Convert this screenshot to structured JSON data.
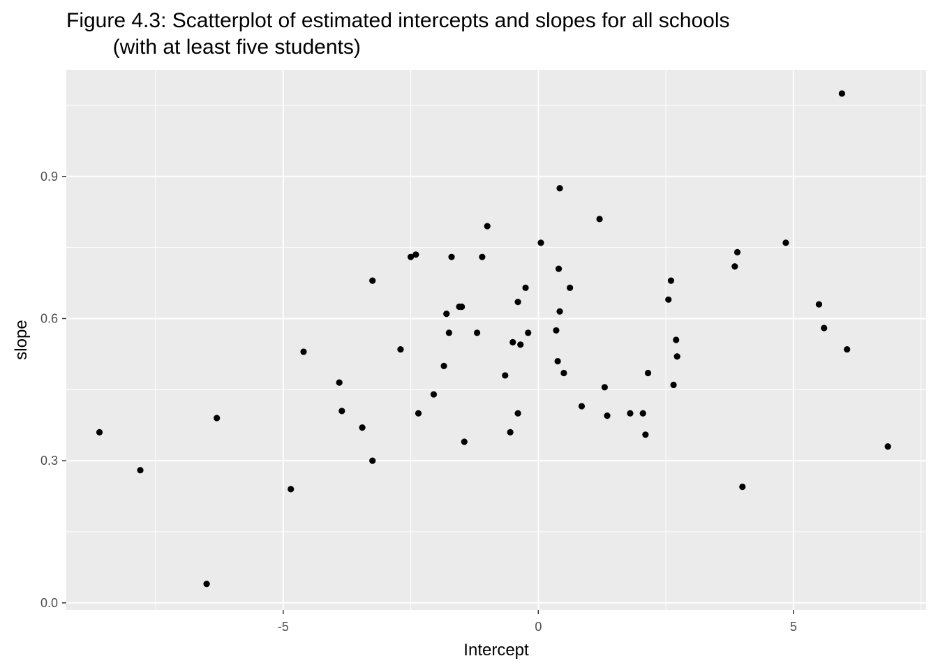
{
  "chart_data": {
    "type": "scatter",
    "title_lines": [
      "Figure 4.3: Scatterplot of estimated intercepts and slopes for all schools",
      "        (with at least five students)"
    ],
    "xlabel": "Intercept",
    "ylabel": "slope",
    "xlim": [
      -9.25,
      7.6
    ],
    "ylim": [
      -0.015,
      1.125
    ],
    "x_ticks": [
      -5,
      0,
      5
    ],
    "x_tick_labels": [
      "-5",
      "0",
      "5"
    ],
    "y_ticks": [
      0.0,
      0.3,
      0.6,
      0.9
    ],
    "y_tick_labels": [
      "0.0",
      "0.3",
      "0.6",
      "0.9"
    ],
    "grid": true,
    "panel_background": "#ebebeb",
    "grid_color": "#ffffff",
    "point_color": "#000000",
    "points": [
      {
        "x": -8.6,
        "y": 0.36
      },
      {
        "x": -7.8,
        "y": 0.28
      },
      {
        "x": -6.5,
        "y": 0.04
      },
      {
        "x": -6.3,
        "y": 0.39
      },
      {
        "x": -4.85,
        "y": 0.24
      },
      {
        "x": -4.6,
        "y": 0.53
      },
      {
        "x": -3.9,
        "y": 0.465
      },
      {
        "x": -3.85,
        "y": 0.405
      },
      {
        "x": -3.45,
        "y": 0.37
      },
      {
        "x": -3.25,
        "y": 0.68
      },
      {
        "x": -3.25,
        "y": 0.3
      },
      {
        "x": -2.7,
        "y": 0.535
      },
      {
        "x": -2.5,
        "y": 0.73
      },
      {
        "x": -2.4,
        "y": 0.735
      },
      {
        "x": -2.35,
        "y": 0.4
      },
      {
        "x": -2.05,
        "y": 0.44
      },
      {
        "x": -1.85,
        "y": 0.5
      },
      {
        "x": -1.8,
        "y": 0.61
      },
      {
        "x": -1.75,
        "y": 0.57
      },
      {
        "x": -1.7,
        "y": 0.73
      },
      {
        "x": -1.55,
        "y": 0.625
      },
      {
        "x": -1.5,
        "y": 0.625
      },
      {
        "x": -1.45,
        "y": 0.34
      },
      {
        "x": -1.2,
        "y": 0.57
      },
      {
        "x": -1.1,
        "y": 0.73
      },
      {
        "x": -1.0,
        "y": 0.795
      },
      {
        "x": -0.65,
        "y": 0.48
      },
      {
        "x": -0.55,
        "y": 0.36
      },
      {
        "x": -0.5,
        "y": 0.55
      },
      {
        "x": -0.4,
        "y": 0.635
      },
      {
        "x": -0.4,
        "y": 0.4
      },
      {
        "x": -0.35,
        "y": 0.545
      },
      {
        "x": -0.25,
        "y": 0.665
      },
      {
        "x": -0.2,
        "y": 0.57
      },
      {
        "x": 0.05,
        "y": 0.76
      },
      {
        "x": 0.35,
        "y": 0.575
      },
      {
        "x": 0.38,
        "y": 0.51
      },
      {
        "x": 0.4,
        "y": 0.705
      },
      {
        "x": 0.42,
        "y": 0.615
      },
      {
        "x": 0.42,
        "y": 0.875
      },
      {
        "x": 0.5,
        "y": 0.485
      },
      {
        "x": 0.62,
        "y": 0.665
      },
      {
        "x": 0.85,
        "y": 0.415
      },
      {
        "x": 1.2,
        "y": 0.81
      },
      {
        "x": 1.3,
        "y": 0.455
      },
      {
        "x": 1.35,
        "y": 0.395
      },
      {
        "x": 1.8,
        "y": 0.4
      },
      {
        "x": 2.05,
        "y": 0.4
      },
      {
        "x": 2.1,
        "y": 0.355
      },
      {
        "x": 2.15,
        "y": 0.485
      },
      {
        "x": 2.55,
        "y": 0.64
      },
      {
        "x": 2.6,
        "y": 0.68
      },
      {
        "x": 2.65,
        "y": 0.46
      },
      {
        "x": 2.7,
        "y": 0.555
      },
      {
        "x": 2.72,
        "y": 0.52
      },
      {
        "x": 3.85,
        "y": 0.71
      },
      {
        "x": 3.9,
        "y": 0.74
      },
      {
        "x": 4.0,
        "y": 0.245
      },
      {
        "x": 4.85,
        "y": 0.76
      },
      {
        "x": 5.5,
        "y": 0.63
      },
      {
        "x": 5.6,
        "y": 0.58
      },
      {
        "x": 5.95,
        "y": 1.075
      },
      {
        "x": 6.05,
        "y": 0.535
      },
      {
        "x": 6.85,
        "y": 0.33
      }
    ]
  }
}
